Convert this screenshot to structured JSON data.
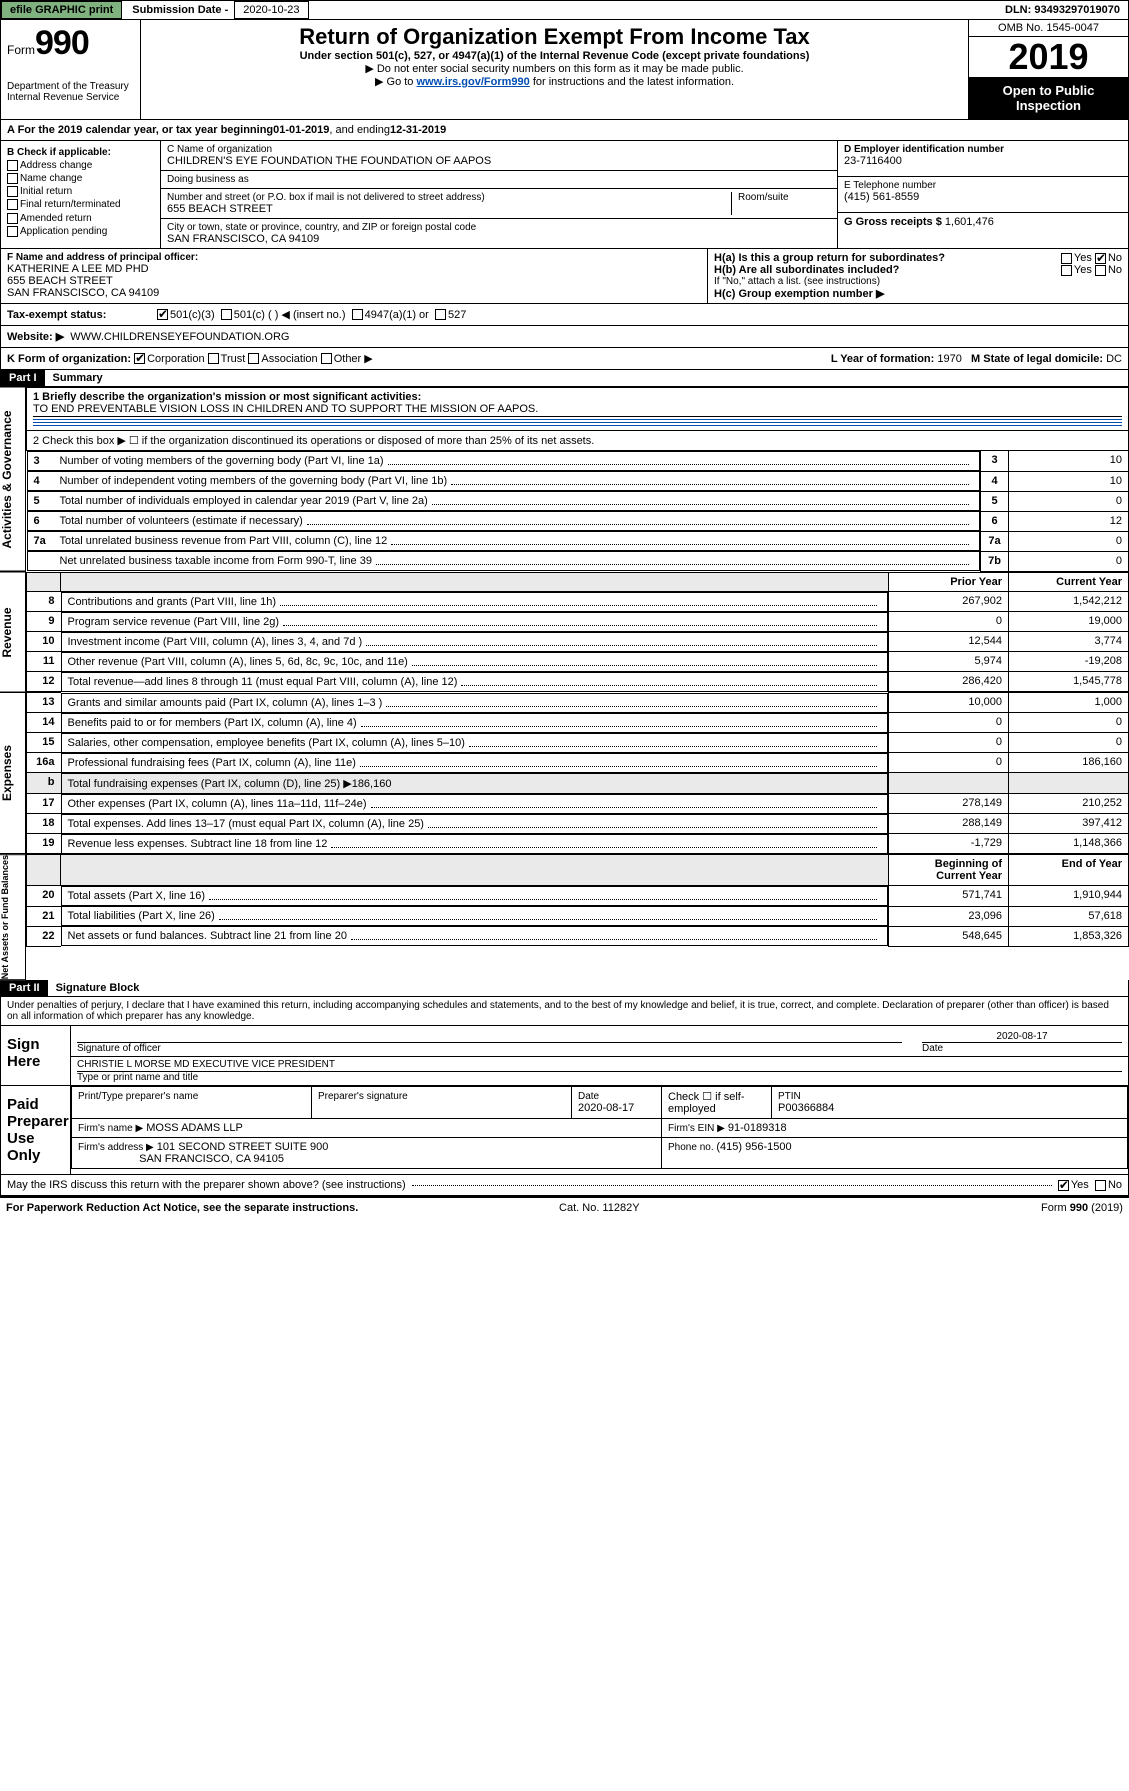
{
  "topbar": {
    "efile": "efile GRAPHIC print",
    "sub_label": "Submission Date - ",
    "sub_date": "2020-10-23",
    "dln_label": "DLN: ",
    "dln": "93493297019070"
  },
  "header": {
    "form_prefix": "Form",
    "form_num": "990",
    "title": "Return of Organization Exempt From Income Tax",
    "sub": "Under section 501(c), 527, or 4947(a)(1) of the Internal Revenue Code (except private foundations)",
    "instr1": "▶ Do not enter social security numbers on this form as it may be made public.",
    "instr2_pre": "▶ Go to ",
    "instr2_link": "www.irs.gov/Form990",
    "instr2_post": " for instructions and the latest information.",
    "omb": "OMB No. 1545-0047",
    "year": "2019",
    "open": "Open to Public Inspection",
    "dept1": "Department of the Treasury",
    "dept2": "Internal Revenue Service"
  },
  "lineA": {
    "text_pre": "A For the 2019 calendar year, or tax year beginning ",
    "begin": "01-01-2019",
    "mid": " , and ending ",
    "end": "12-31-2019"
  },
  "boxB": {
    "title": "B Check if applicable:",
    "opts": [
      "Address change",
      "Name change",
      "Initial return",
      "Final return/terminated",
      "Amended return",
      "Application pending"
    ]
  },
  "boxC": {
    "label": "C Name of organization",
    "name": "CHILDREN'S EYE FOUNDATION THE FOUNDATION OF AAPOS",
    "dba_label": "Doing business as",
    "addr_label": "Number and street (or P.O. box if mail is not delivered to street address)",
    "room_label": "Room/suite",
    "addr": "655 BEACH STREET",
    "city_label": "City or town, state or province, country, and ZIP or foreign postal code",
    "city": "SAN FRANSCISCO, CA  94109"
  },
  "boxD": {
    "label": "D Employer identification number",
    "val": "23-7116400"
  },
  "boxE": {
    "label": "E Telephone number",
    "val": "(415) 561-8559"
  },
  "boxG": {
    "label": "G Gross receipts $ ",
    "val": "1,601,476"
  },
  "boxF": {
    "label": "F  Name and address of principal officer:",
    "name": "KATHERINE A LEE MD PHD",
    "addr1": "655 BEACH STREET",
    "addr2": "SAN FRANSCISCO, CA  94109"
  },
  "boxH": {
    "ha": "H(a)  Is this a group return for subordinates?",
    "hb": "H(b)  Are all subordinates included?",
    "hb_note": "If \"No,\" attach a list. (see instructions)",
    "hc": "H(c)  Group exemption number ▶",
    "yes": "Yes",
    "no": "No"
  },
  "boxI": {
    "label": "Tax-exempt status:",
    "o1": "501(c)(3)",
    "o2": "501(c) (  ) ◀ (insert no.)",
    "o3": "4947(a)(1) or",
    "o4": "527"
  },
  "boxJ": {
    "label": "Website: ▶",
    "val": "WWW.CHILDRENSEYEFOUNDATION.ORG"
  },
  "boxK": {
    "label": "K Form of organization:",
    "c": "Corporation",
    "t": "Trust",
    "a": "Association",
    "o": "Other ▶"
  },
  "boxL": {
    "label": "L Year of formation: ",
    "val": "1970"
  },
  "boxM": {
    "label": "M State of legal domicile: ",
    "val": "DC"
  },
  "part1": {
    "tag": "Part I",
    "title": "Summary"
  },
  "summary": {
    "q1": "1  Briefly describe the organization's mission or most significant activities:",
    "mission": "TO END PREVENTABLE VISION LOSS IN CHILDREN AND TO SUPPORT THE MISSION OF AAPOS.",
    "q2": "2  Check this box ▶ ☐  if the organization discontinued its operations or disposed of more than 25% of its net assets.",
    "rows_gov": [
      {
        "n": "3",
        "t": "Number of voting members of the governing body (Part VI, line 1a)",
        "b": "3",
        "v": "10"
      },
      {
        "n": "4",
        "t": "Number of independent voting members of the governing body (Part VI, line 1b)",
        "b": "4",
        "v": "10"
      },
      {
        "n": "5",
        "t": "Total number of individuals employed in calendar year 2019 (Part V, line 2a)",
        "b": "5",
        "v": "0"
      },
      {
        "n": "6",
        "t": "Total number of volunteers (estimate if necessary)",
        "b": "6",
        "v": "12"
      },
      {
        "n": "7a",
        "t": "Total unrelated business revenue from Part VIII, column (C), line 12",
        "b": "7a",
        "v": "0"
      },
      {
        "n": "",
        "t": "Net unrelated business taxable income from Form 990-T, line 39",
        "b": "7b",
        "v": "0"
      }
    ],
    "hdr_prior": "Prior Year",
    "hdr_cur": "Current Year",
    "rows_rev": [
      {
        "n": "8",
        "t": "Contributions and grants (Part VIII, line 1h)",
        "p": "267,902",
        "c": "1,542,212"
      },
      {
        "n": "9",
        "t": "Program service revenue (Part VIII, line 2g)",
        "p": "0",
        "c": "19,000"
      },
      {
        "n": "10",
        "t": "Investment income (Part VIII, column (A), lines 3, 4, and 7d )",
        "p": "12,544",
        "c": "3,774"
      },
      {
        "n": "11",
        "t": "Other revenue (Part VIII, column (A), lines 5, 6d, 8c, 9c, 10c, and 11e)",
        "p": "5,974",
        "c": "-19,208"
      },
      {
        "n": "12",
        "t": "Total revenue—add lines 8 through 11 (must equal Part VIII, column (A), line 12)",
        "p": "286,420",
        "c": "1,545,778"
      }
    ],
    "rows_exp": [
      {
        "n": "13",
        "t": "Grants and similar amounts paid (Part IX, column (A), lines 1–3 )",
        "p": "10,000",
        "c": "1,000"
      },
      {
        "n": "14",
        "t": "Benefits paid to or for members (Part IX, column (A), line 4)",
        "p": "0",
        "c": "0"
      },
      {
        "n": "15",
        "t": "Salaries, other compensation, employee benefits (Part IX, column (A), lines 5–10)",
        "p": "0",
        "c": "0"
      },
      {
        "n": "16a",
        "t": "Professional fundraising fees (Part IX, column (A), line 11e)",
        "p": "0",
        "c": "186,160"
      },
      {
        "n": "b",
        "t": "Total fundraising expenses (Part IX, column (D), line 25) ▶186,160",
        "p": "",
        "c": "",
        "shade": true
      },
      {
        "n": "17",
        "t": "Other expenses (Part IX, column (A), lines 11a–11d, 11f–24e)",
        "p": "278,149",
        "c": "210,252"
      },
      {
        "n": "18",
        "t": "Total expenses. Add lines 13–17 (must equal Part IX, column (A), line 25)",
        "p": "288,149",
        "c": "397,412"
      },
      {
        "n": "19",
        "t": "Revenue less expenses. Subtract line 18 from line 12",
        "p": "-1,729",
        "c": "1,148,366"
      }
    ],
    "hdr_beg": "Beginning of Current Year",
    "hdr_end": "End of Year",
    "rows_net": [
      {
        "n": "20",
        "t": "Total assets (Part X, line 16)",
        "p": "571,741",
        "c": "1,910,944"
      },
      {
        "n": "21",
        "t": "Total liabilities (Part X, line 26)",
        "p": "23,096",
        "c": "57,618"
      },
      {
        "n": "22",
        "t": "Net assets or fund balances. Subtract line 21 from line 20",
        "p": "548,645",
        "c": "1,853,326"
      }
    ],
    "side_gov": "Activities & Governance",
    "side_rev": "Revenue",
    "side_exp": "Expenses",
    "side_net": "Net Assets or Fund Balances"
  },
  "part2": {
    "tag": "Part II",
    "title": "Signature Block"
  },
  "sig": {
    "jurat": "Under penalties of perjury, I declare that I have examined this return, including accompanying schedules and statements, and to the best of my knowledge and belief, it is true, correct, and complete. Declaration of preparer (other than officer) is based on all information of which preparer has any knowledge.",
    "sign_here": "Sign Here",
    "sig_officer": "Signature of officer",
    "date_label": "Date",
    "sig_date": "2020-08-17",
    "name_title": "CHRISTIE L MORSE MD  EXECUTIVE VICE PRESIDENT",
    "type_print": "Type or print name and title",
    "paid": "Paid Preparer Use Only",
    "prep_name_lbl": "Print/Type preparer's name",
    "prep_sig_lbl": "Preparer's signature",
    "prep_date": "2020-08-17",
    "check_self": "Check ☐ if self-employed",
    "ptin_lbl": "PTIN",
    "ptin": "P00366884",
    "firm_name_lbl": "Firm's name    ▶",
    "firm_name": "MOSS ADAMS LLP",
    "firm_ein_lbl": "Firm's EIN ▶",
    "firm_ein": "91-0189318",
    "firm_addr_lbl": "Firm's address ▶",
    "firm_addr1": "101 SECOND STREET SUITE 900",
    "firm_addr2": "SAN FRANCISCO, CA  94105",
    "phone_lbl": "Phone no. ",
    "phone": "(415) 956-1500",
    "discuss": "May the IRS discuss this return with the preparer shown above? (see instructions)",
    "yes": "Yes",
    "no": "No"
  },
  "footer": {
    "pra": "For Paperwork Reduction Act Notice, see the separate instructions.",
    "cat": "Cat. No. 11282Y",
    "form": "Form 990 (2019)"
  }
}
